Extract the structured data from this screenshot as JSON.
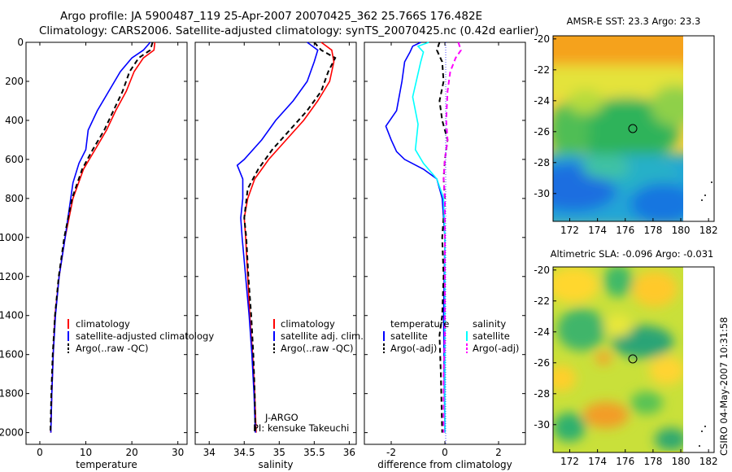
{
  "header": {
    "line1": "Argo profile: JA 5900487_119 25-Apr-2007 20070425_362 25.766S 176.482E",
    "line2": "Climatology: CARS2006. Satellite-adjusted climatology: synTS_20070425.nc (0.42d earlier)"
  },
  "colors": {
    "climatology": "#ff0000",
    "satellite": "#0000ff",
    "argo": "#000000",
    "sat_salinity": "#00ffff",
    "argo_salinity": "#ff00ff"
  },
  "chart_data": [
    {
      "type": "line",
      "id": "temperature",
      "xlabel": "temperature",
      "xlim": [
        -3,
        32
      ],
      "ylim": [
        2060,
        0
      ],
      "xticks": [
        0,
        10,
        20,
        30
      ],
      "yticks": [
        0,
        200,
        400,
        600,
        800,
        1000,
        1200,
        1400,
        1600,
        1800,
        2000
      ],
      "legend": [
        "climatology",
        "satellite-adjusted climatology",
        "Argo(..raw -QC)"
      ],
      "series": [
        {
          "name": "climatology",
          "color": "#ff0000",
          "dash": "",
          "points": [
            [
              25.0,
              0
            ],
            [
              24.8,
              40
            ],
            [
              22.5,
              80
            ],
            [
              20.5,
              150
            ],
            [
              18.8,
              250
            ],
            [
              16.5,
              350
            ],
            [
              14.5,
              450
            ],
            [
              12.0,
              550
            ],
            [
              9.5,
              650
            ],
            [
              7.2,
              800
            ],
            [
              5.5,
              1000
            ],
            [
              4.2,
              1200
            ],
            [
              3.3,
              1400
            ],
            [
              2.9,
              1600
            ],
            [
              2.6,
              1800
            ],
            [
              2.4,
              2000
            ]
          ]
        },
        {
          "name": "satellite-adjusted climatology",
          "color": "#0000ff",
          "dash": "",
          "points": [
            [
              24.0,
              0
            ],
            [
              22.5,
              40
            ],
            [
              20.0,
              80
            ],
            [
              17.5,
              150
            ],
            [
              15.0,
              250
            ],
            [
              12.5,
              350
            ],
            [
              10.5,
              450
            ],
            [
              10.0,
              550
            ],
            [
              8.5,
              620
            ],
            [
              7.2,
              720
            ],
            [
              5.5,
              1000
            ],
            [
              4.2,
              1200
            ],
            [
              3.4,
              1400
            ],
            [
              2.9,
              1600
            ],
            [
              2.6,
              1800
            ],
            [
              2.4,
              2000
            ]
          ]
        },
        {
          "name": "Argo(..raw -QC)",
          "color": "#000000",
          "dash": "6,4",
          "points": [
            [
              24.5,
              0
            ],
            [
              24.0,
              40
            ],
            [
              21.5,
              80
            ],
            [
              19.5,
              150
            ],
            [
              18.0,
              250
            ],
            [
              16.0,
              350
            ],
            [
              14.0,
              450
            ],
            [
              11.5,
              550
            ],
            [
              9.2,
              650
            ],
            [
              7.0,
              800
            ],
            [
              5.3,
              1000
            ],
            [
              4.1,
              1200
            ],
            [
              3.3,
              1400
            ],
            [
              2.8,
              1600
            ],
            [
              2.5,
              1800
            ],
            [
              2.3,
              2000
            ]
          ]
        }
      ]
    },
    {
      "type": "line",
      "id": "salinity",
      "xlabel": "salinity",
      "xlim": [
        33.8,
        36.1
      ],
      "ylim": [
        2060,
        0
      ],
      "xticks": [
        34,
        34.5,
        35,
        35.5,
        36
      ],
      "legend": [
        "climatology",
        "satellite adj. clim.",
        "Argo(..raw -QC)"
      ],
      "annotations": [
        "J-ARGO",
        "PI: kensuke Takeuchi"
      ],
      "series": [
        {
          "name": "climatology",
          "color": "#ff0000",
          "dash": "",
          "points": [
            [
              35.6,
              0
            ],
            [
              35.75,
              40
            ],
            [
              35.78,
              100
            ],
            [
              35.72,
              200
            ],
            [
              35.55,
              300
            ],
            [
              35.35,
              400
            ],
            [
              35.1,
              500
            ],
            [
              34.85,
              600
            ],
            [
              34.65,
              700
            ],
            [
              34.55,
              800
            ],
            [
              34.5,
              900
            ],
            [
              34.52,
              1000
            ],
            [
              34.55,
              1200
            ],
            [
              34.58,
              1400
            ],
            [
              34.62,
              1600
            ],
            [
              34.65,
              1800
            ],
            [
              34.67,
              2000
            ]
          ]
        },
        {
          "name": "satellite adj. clim.",
          "color": "#0000ff",
          "dash": "",
          "points": [
            [
              35.4,
              0
            ],
            [
              35.55,
              40
            ],
            [
              35.5,
              100
            ],
            [
              35.4,
              200
            ],
            [
              35.2,
              300
            ],
            [
              34.95,
              400
            ],
            [
              34.75,
              500
            ],
            [
              34.5,
              600
            ],
            [
              34.4,
              630
            ],
            [
              34.48,
              700
            ],
            [
              34.48,
              800
            ],
            [
              34.45,
              900
            ],
            [
              34.47,
              1000
            ],
            [
              34.52,
              1200
            ],
            [
              34.57,
              1400
            ],
            [
              34.61,
              1600
            ],
            [
              34.64,
              1800
            ],
            [
              34.66,
              2000
            ]
          ]
        },
        {
          "name": "Argo(..raw -QC)",
          "color": "#000000",
          "dash": "6,4",
          "points": [
            [
              35.5,
              0
            ],
            [
              35.6,
              40
            ],
            [
              35.8,
              80
            ],
            [
              35.7,
              150
            ],
            [
              35.6,
              250
            ],
            [
              35.4,
              350
            ],
            [
              35.15,
              450
            ],
            [
              34.9,
              550
            ],
            [
              34.7,
              650
            ],
            [
              34.55,
              750
            ],
            [
              34.5,
              900
            ],
            [
              34.53,
              1000
            ],
            [
              34.56,
              1200
            ],
            [
              34.6,
              1400
            ],
            [
              34.63,
              1600
            ],
            [
              34.65,
              1800
            ],
            [
              34.66,
              2000
            ]
          ]
        }
      ]
    },
    {
      "type": "line",
      "id": "difference",
      "xlabel": "difference from climatology",
      "xlim": [
        -3,
        3
      ],
      "ylim": [
        2060,
        0
      ],
      "xticks": [
        -2,
        0,
        2
      ],
      "legend_left": {
        "title": "temperature",
        "items": [
          "satellite",
          "Argo(-adj)"
        ]
      },
      "legend_right": {
        "title": "salinity",
        "items": [
          "satellite",
          "Argo(-adj)"
        ]
      },
      "series": [
        {
          "name": "temperature satellite",
          "color": "#0000ff",
          "dash": "",
          "points": [
            [
              -0.9,
              0
            ],
            [
              -1.2,
              20
            ],
            [
              -1.3,
              50
            ],
            [
              -1.5,
              100
            ],
            [
              -1.6,
              200
            ],
            [
              -1.8,
              350
            ],
            [
              -2.2,
              430
            ],
            [
              -2.0,
              500
            ],
            [
              -1.8,
              560
            ],
            [
              -1.5,
              600
            ],
            [
              -0.8,
              650
            ],
            [
              -0.3,
              700
            ],
            [
              -0.1,
              800
            ],
            [
              0.0,
              1000
            ],
            [
              -0.05,
              1400
            ],
            [
              0.0,
              2000
            ]
          ]
        },
        {
          "name": "temperature Argo(-adj)",
          "color": "#000000",
          "dash": "6,4",
          "points": [
            [
              -0.2,
              0
            ],
            [
              -0.3,
              40
            ],
            [
              -0.1,
              100
            ],
            [
              -0.05,
              200
            ],
            [
              -0.2,
              300
            ],
            [
              -0.1,
              400
            ],
            [
              0.1,
              500
            ],
            [
              0.0,
              600
            ],
            [
              -0.05,
              700
            ],
            [
              0.0,
              800
            ],
            [
              -0.1,
              1000
            ],
            [
              -0.05,
              1200
            ],
            [
              -0.1,
              1400
            ],
            [
              -0.2,
              1500
            ],
            [
              -0.15,
              1700
            ],
            [
              -0.1,
              2000
            ]
          ]
        },
        {
          "name": "salinity satellite",
          "color": "#00ffff",
          "dash": "",
          "points": [
            [
              -0.6,
              0
            ],
            [
              -1.0,
              20
            ],
            [
              -0.8,
              50
            ],
            [
              -0.9,
              100
            ],
            [
              -1.2,
              280
            ],
            [
              -1.0,
              420
            ],
            [
              -1.1,
              550
            ],
            [
              -0.8,
              620
            ],
            [
              -0.3,
              700
            ],
            [
              -0.05,
              800
            ],
            [
              0.0,
              1000
            ],
            [
              0.0,
              2000
            ]
          ]
        },
        {
          "name": "salinity Argo(-adj)",
          "color": "#ff00ff",
          "dash": "6,4",
          "points": [
            [
              0.5,
              0
            ],
            [
              0.6,
              40
            ],
            [
              0.4,
              80
            ],
            [
              0.2,
              150
            ],
            [
              0.1,
              250
            ],
            [
              0.05,
              400
            ],
            [
              0.1,
              500
            ],
            [
              0.0,
              600
            ],
            [
              -0.05,
              700
            ],
            [
              0.0,
              800
            ],
            [
              0.0,
              1500
            ],
            [
              -0.05,
              1700
            ],
            [
              -0.05,
              2000
            ]
          ]
        }
      ]
    },
    {
      "type": "heatmap",
      "id": "sst-map",
      "title": "AMSR-E SST: 23.3 Argo: 23.3",
      "xlim": [
        170.8,
        182.4
      ],
      "ylim": [
        -31.8,
        -19.8
      ],
      "xticks": [
        172,
        174,
        176,
        178,
        180,
        182
      ],
      "yticks": [
        -20,
        -22,
        -24,
        -26,
        -28,
        -30
      ],
      "profile_location": [
        176.482,
        -25.766
      ]
    },
    {
      "type": "heatmap",
      "id": "sla-map",
      "title": "Altimetric SLA: -0.096 Argo: -0.031",
      "xlim": [
        170.8,
        182.4
      ],
      "ylim": [
        -31.8,
        -19.8
      ],
      "xticks": [
        172,
        174,
        176,
        178,
        180,
        182
      ],
      "yticks": [
        -20,
        -22,
        -24,
        -26,
        -28,
        -30
      ],
      "profile_location": [
        176.482,
        -25.766
      ]
    }
  ],
  "footer": {
    "credit": "CSIRO 04-May-2007 10:31:58"
  }
}
